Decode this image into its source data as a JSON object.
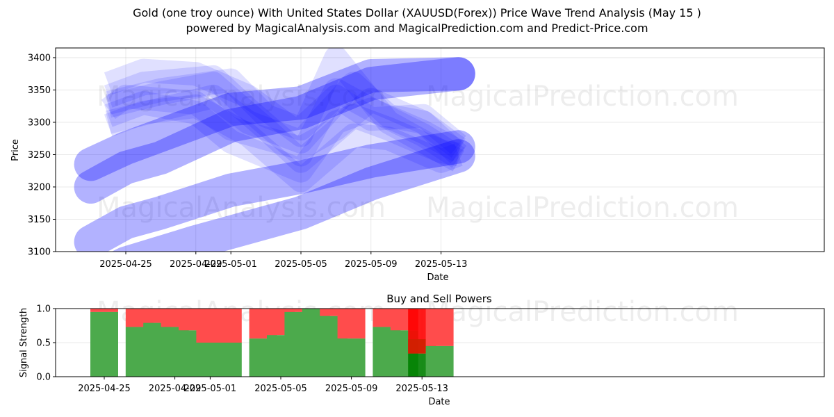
{
  "header": {
    "title": "Gold (one troy ounce) With United States Dollar (XAUUSD(Forex)) Price Wave Trend Analysis (May 15 )",
    "subtitle": "powered by MagicalAnalysis.com and MagicalPrediction.com and Predict-Price.com"
  },
  "watermark": {
    "left": "MagicalAnalysis.com",
    "right": "MagicalPrediction.com"
  },
  "chart_data": [
    {
      "type": "line",
      "xlabel": "Date",
      "ylabel": "Price",
      "ylim": [
        3100,
        3415
      ],
      "xlim": [
        "2025-04-23",
        "2025-05-15"
      ],
      "x_ticks": [
        "2025-04-25",
        "2025-04-29",
        "2025-05-01",
        "2025-05-05",
        "2025-05-09",
        "2025-05-13"
      ],
      "y_ticks": [
        3100,
        3150,
        3200,
        3250,
        3300,
        3350,
        3400
      ],
      "grid": true,
      "band_color": "#0000ff",
      "series": [
        {
          "x": [
            "2025-04-23",
            "2025-04-25",
            "2025-04-27",
            "2025-05-01",
            "2025-05-05",
            "2025-05-09",
            "2025-05-14"
          ],
          "values": [
            3200,
            3230,
            3245,
            3295,
            3315,
            3360,
            3375
          ]
        },
        {
          "x": [
            "2025-04-23",
            "2025-04-25",
            "2025-04-27",
            "2025-05-01",
            "2025-05-05",
            "2025-05-09",
            "2025-05-14"
          ],
          "values": [
            3115,
            3145,
            3160,
            3195,
            3215,
            3240,
            3262
          ]
        },
        {
          "x": [
            "2025-04-23",
            "2025-04-25",
            "2025-04-29",
            "2025-05-01",
            "2025-05-05",
            "2025-05-09",
            "2025-05-14"
          ],
          "values": [
            3235,
            3260,
            3300,
            3320,
            3330,
            3372,
            3375
          ]
        },
        {
          "x": [
            "2025-04-23",
            "2025-04-25",
            "2025-04-29",
            "2025-05-01",
            "2025-05-05",
            "2025-05-09",
            "2025-05-14"
          ],
          "values": [
            3055,
            3082,
            3115,
            3130,
            3160,
            3205,
            3248
          ]
        },
        {
          "x": [
            "2025-04-24",
            "2025-04-25",
            "2025-04-29",
            "2025-05-01",
            "2025-05-05",
            "2025-05-07",
            "2025-05-09",
            "2025-05-12",
            "2025-05-14"
          ],
          "values": [
            3320,
            3340,
            3330,
            3290,
            3260,
            3290,
            3335,
            3300,
            3250
          ]
        },
        {
          "x": [
            "2025-04-24",
            "2025-04-26",
            "2025-04-29",
            "2025-05-01",
            "2025-05-05",
            "2025-05-07",
            "2025-05-09",
            "2025-05-12",
            "2025-05-14"
          ],
          "values": [
            3310,
            3330,
            3315,
            3270,
            3225,
            3300,
            3320,
            3285,
            3255
          ]
        },
        {
          "x": [
            "2025-04-24",
            "2025-04-26",
            "2025-04-30",
            "2025-05-02",
            "2025-05-05",
            "2025-05-07",
            "2025-05-09",
            "2025-05-12",
            "2025-05-14"
          ],
          "values": [
            3340,
            3360,
            3370,
            3320,
            3250,
            3350,
            3320,
            3280,
            3245
          ]
        },
        {
          "x": [
            "2025-04-24",
            "2025-04-27",
            "2025-04-30",
            "2025-05-02",
            "2025-05-05",
            "2025-05-08",
            "2025-05-10",
            "2025-05-12",
            "2025-05-14"
          ],
          "values": [
            3300,
            3320,
            3340,
            3300,
            3270,
            3360,
            3310,
            3300,
            3260
          ]
        },
        {
          "x": [
            "2025-04-24",
            "2025-04-26",
            "2025-04-29",
            "2025-05-02",
            "2025-05-05",
            "2025-05-07",
            "2025-05-10",
            "2025-05-12",
            "2025-05-14"
          ],
          "values": [
            3360,
            3380,
            3375,
            3340,
            3280,
            3400,
            3300,
            3270,
            3240
          ]
        },
        {
          "x": [
            "2025-04-24",
            "2025-04-27",
            "2025-04-30",
            "2025-05-03",
            "2025-05-05",
            "2025-05-08",
            "2025-05-10",
            "2025-05-13",
            "2025-05-14"
          ],
          "values": [
            3325,
            3345,
            3360,
            3290,
            3240,
            3310,
            3290,
            3255,
            3250
          ]
        },
        {
          "x": [
            "2025-04-24",
            "2025-04-26",
            "2025-04-29",
            "2025-05-02",
            "2025-05-05",
            "2025-05-08",
            "2025-05-10",
            "2025-05-13",
            "2025-05-14"
          ],
          "values": [
            3295,
            3315,
            3325,
            3280,
            3210,
            3280,
            3275,
            3240,
            3250
          ]
        },
        {
          "x": [
            "2025-04-24",
            "2025-04-27",
            "2025-05-01",
            "2025-05-03",
            "2025-05-05",
            "2025-05-07",
            "2025-05-09",
            "2025-05-12",
            "2025-05-14"
          ],
          "values": [
            3330,
            3350,
            3365,
            3310,
            3290,
            3340,
            3305,
            3310,
            3265
          ]
        }
      ]
    },
    {
      "type": "bar",
      "title": "Buy and Sell Powers",
      "xlabel": "Date",
      "ylabel": "Signal Strength",
      "ylim": [
        0,
        1.0
      ],
      "y_ticks": [
        0.0,
        0.5,
        1.0
      ],
      "x_ticks": [
        "2025-04-25",
        "2025-04-29",
        "2025-05-01",
        "2025-05-05",
        "2025-05-09",
        "2025-05-13"
      ],
      "grid": true,
      "buy_color": "#4caa4c",
      "sell_color": "#ff4c4c",
      "dates": [
        "2025-04-25",
        "2025-04-27",
        "2025-04-28",
        "2025-04-29",
        "2025-04-30",
        "2025-05-01",
        "2025-05-02",
        "2025-05-04",
        "2025-05-05",
        "2025-05-06",
        "2025-05-07",
        "2025-05-08",
        "2025-05-09",
        "2025-05-11",
        "2025-05-12",
        "2025-05-13",
        "2025-05-14"
      ],
      "series": [
        {
          "values": [
            0.95,
            0.73,
            0.79,
            0.73,
            0.68,
            0.5,
            0.5,
            0.56,
            0.61,
            0.95,
            1.0,
            0.89,
            0.56,
            0.73,
            0.68,
            0.34,
            0.45
          ]
        },
        {
          "values": [
            0.05,
            0.27,
            0.21,
            0.27,
            0.32,
            0.5,
            0.5,
            0.44,
            0.39,
            0.05,
            0.0,
            0.11,
            0.44,
            0.27,
            0.32,
            0.66,
            0.55
          ]
        }
      ],
      "highlight": {
        "date": "2025-05-13",
        "buy_color": "#008000",
        "sell_color": "#ff0000",
        "overlap_color": "#cc2200"
      }
    }
  ]
}
